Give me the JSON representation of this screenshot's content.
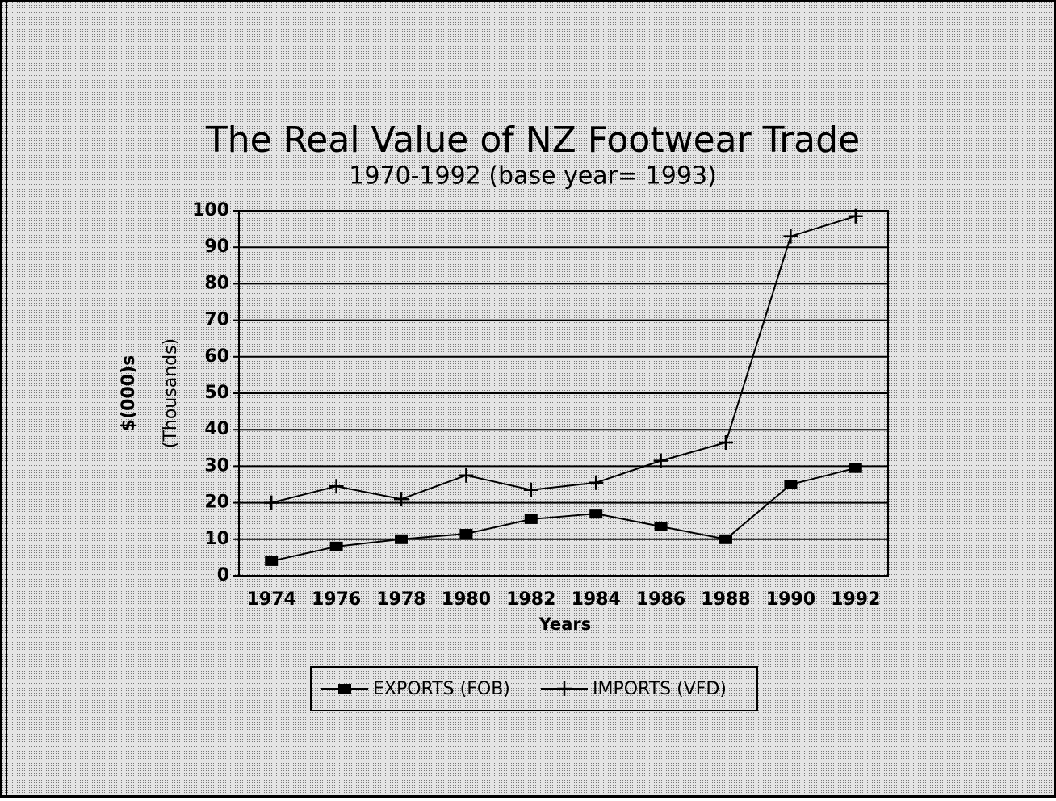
{
  "chart_data": {
    "type": "line",
    "title": "The Real Value of NZ Footwear Trade",
    "subtitle": "1970-1992 (base year= 1993)",
    "x_label": "Years",
    "y_label": [
      "$(000)s",
      "(Thousands)"
    ],
    "categories": [
      "1974",
      "1976",
      "1978",
      "1980",
      "1982",
      "1984",
      "1986",
      "1988",
      "1990",
      "1992"
    ],
    "series": [
      {
        "name": "EXPORTS (FOB)",
        "color": "#000000",
        "marker": "square",
        "values": [
          4,
          8,
          10,
          11.5,
          15.5,
          17,
          13.5,
          10,
          25,
          29.5
        ]
      },
      {
        "name": "IMPORTS (VFD)",
        "color": "#000000",
        "marker": "plus",
        "values": [
          20,
          24.5,
          21,
          27.5,
          23.5,
          25.5,
          31.5,
          36.5,
          93,
          98.5
        ]
      }
    ],
    "ylim": [
      0,
      100
    ],
    "yticks": [
      0,
      10,
      20,
      30,
      40,
      50,
      60,
      70,
      80,
      90,
      100
    ],
    "grid": true,
    "legend": "bottom"
  }
}
